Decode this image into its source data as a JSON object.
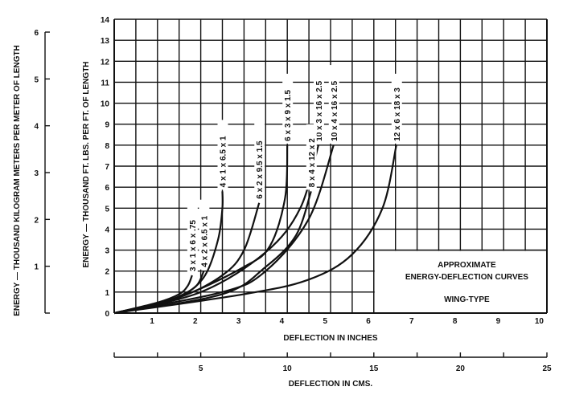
{
  "chart_data": {
    "type": "line",
    "title": "APPROXIMATE ENERGY-DEFLECTION CURVES",
    "subtitle": "WING-TYPE",
    "legend_lines": [
      "APPROXIMATE",
      "ENERGY-DEFLECTION CURVES",
      "WING-TYPE"
    ],
    "legend_placement": "bottom-right",
    "xlabel": "DEFLECTION IN INCHES",
    "xlabel_secondary": "DEFLECTION IN CMS.",
    "ylabel": "ENERGY — THOUSAND FT. LBS. PER FT. OF LENGTH",
    "ylabel_secondary": "ENERGY — THOUSAND KILOGRAM METERS PER METER OF LENGTH",
    "xlim": [
      0,
      10
    ],
    "ylim": [
      0,
      14
    ],
    "x2lim": [
      0,
      25
    ],
    "y2lim": [
      0,
      6
    ],
    "grid": true,
    "x_ticks": [
      "1",
      "2",
      "3",
      "4",
      "5",
      "6",
      "7",
      "8",
      "9",
      "10"
    ],
    "y_ticks": [
      "0",
      "1",
      "2",
      "3",
      "4",
      "5",
      "6",
      "7",
      "8",
      "9",
      "10",
      "11",
      "12",
      "13",
      "14"
    ],
    "x2_ticks": [
      "5",
      "10",
      "15",
      "20",
      "25"
    ],
    "y2_ticks": [
      "1",
      "2",
      "3",
      "4",
      "5",
      "6"
    ],
    "series": [
      {
        "name": "3 x 1 x 6 x .75",
        "points": [
          [
            0,
            0
          ],
          [
            1,
            0.5
          ],
          [
            1.5,
            0.9
          ],
          [
            1.7,
            1.3
          ],
          [
            1.8,
            1.8
          ]
        ]
      },
      {
        "name": "4 x 2 x 6.5 x 1",
        "points": [
          [
            0,
            0
          ],
          [
            1,
            0.45
          ],
          [
            1.5,
            0.8
          ],
          [
            1.9,
            1.3
          ],
          [
            2.07,
            2.0
          ]
        ]
      },
      {
        "name": "4 x 1 x 6.5 x 1",
        "points": [
          [
            0,
            0
          ],
          [
            1,
            0.4
          ],
          [
            1.6,
            0.85
          ],
          [
            2.1,
            1.8
          ],
          [
            2.4,
            3.5
          ],
          [
            2.5,
            5.0
          ],
          [
            2.5,
            5.8
          ]
        ]
      },
      {
        "name": "6 x 2 x 9.5 x 1.5",
        "points": [
          [
            0,
            0
          ],
          [
            1.5,
            0.75
          ],
          [
            2.5,
            1.8
          ],
          [
            3.0,
            3.0
          ],
          [
            3.35,
            5.25
          ]
        ]
      },
      {
        "name": "6 x 3 x 9 x 1.5",
        "points": [
          [
            0,
            0
          ],
          [
            1.5,
            0.75
          ],
          [
            3.0,
            2.2
          ],
          [
            3.6,
            3.2
          ],
          [
            3.95,
            5.5
          ],
          [
            4.0,
            8.0
          ]
        ]
      },
      {
        "name": "10 x 3 x 16 x 2.5",
        "points": [
          [
            0,
            0
          ],
          [
            2,
            1.0
          ],
          [
            3.5,
            2.9
          ],
          [
            4.3,
            5.0
          ],
          [
            4.72,
            8.0
          ]
        ]
      },
      {
        "name": "10 x 4 x 16 x 2.5",
        "points": [
          [
            0,
            0
          ],
          [
            2.5,
            1.0
          ],
          [
            3.5,
            2.0
          ],
          [
            4.5,
            4.5
          ],
          [
            5.07,
            8.0
          ]
        ]
      },
      {
        "name": "8 x 4 x 12 x 2",
        "points": [
          [
            0,
            0
          ],
          [
            2.5,
            0.9
          ],
          [
            3.5,
            2.2
          ],
          [
            4.2,
            3.7
          ],
          [
            4.55,
            5.8
          ]
        ]
      },
      {
        "name": "12 x 6 x 18 x 3",
        "points": [
          [
            0,
            0
          ],
          [
            3,
            0.9
          ],
          [
            4.5,
            1.6
          ],
          [
            5.5,
            2.8
          ],
          [
            6.2,
            5.0
          ],
          [
            6.52,
            8.0
          ]
        ]
      }
    ]
  }
}
